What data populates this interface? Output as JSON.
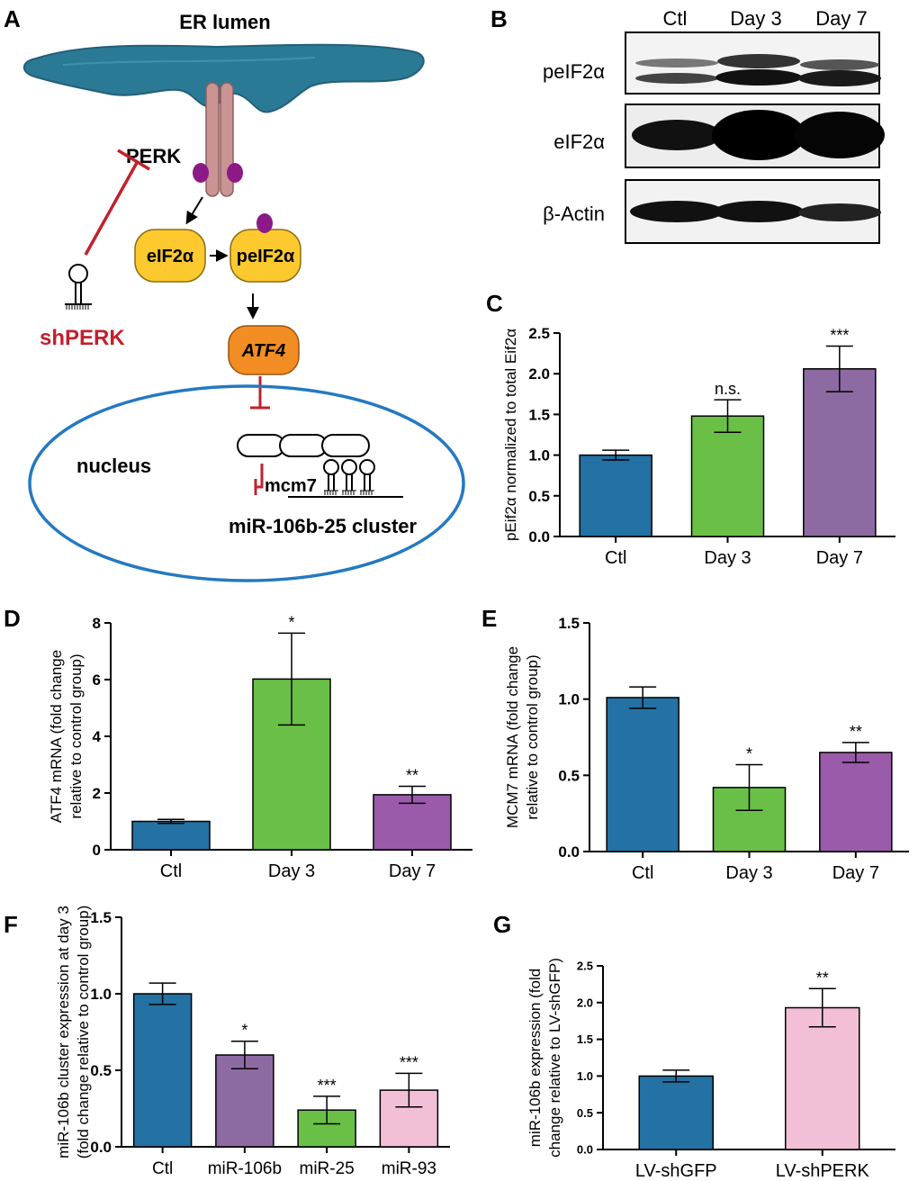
{
  "panel_labels": [
    "A",
    "B",
    "C",
    "D",
    "E",
    "F",
    "G"
  ],
  "diagram": {
    "er_lumen": "ER lumen",
    "perk": "PERK",
    "eif2a": "eIF2α",
    "peif2a": "peIF2α",
    "atf4": "ATF4",
    "nucleus": "nucleus",
    "mcm7": "mcm7",
    "cluster": "miR-106b-25  cluster",
    "shperk": "shPERK"
  },
  "blot": {
    "lanes": [
      "Ctl",
      "Day 3",
      "Day 7"
    ],
    "rows": [
      "peIF2α",
      "eIF2α",
      "β-Actin"
    ]
  },
  "chart_data": [
    {
      "panel": "C",
      "type": "bar",
      "categories": [
        "Ctl",
        "Day 3",
        "Day 7"
      ],
      "values": [
        1.0,
        1.48,
        2.06
      ],
      "errors": [
        0.06,
        0.2,
        0.28
      ],
      "sig": [
        "",
        "n.s.",
        "***"
      ],
      "colors": [
        "#2471a3",
        "#6ac046",
        "#8e6aa3"
      ],
      "ylabel": "pEif2α normalized to total Eif2α",
      "ylim": [
        0,
        2.5
      ],
      "yticks": [
        "0.0",
        "0.5",
        "1.0",
        "1.5",
        "2.0",
        "2.5"
      ]
    },
    {
      "panel": "D",
      "type": "bar",
      "categories": [
        "Ctl",
        "Day 3",
        "Day 7"
      ],
      "values": [
        1.0,
        6.02,
        1.94
      ],
      "errors": [
        0.07,
        1.62,
        0.3
      ],
      "sig": [
        "",
        "*",
        "**"
      ],
      "colors": [
        "#2471a3",
        "#6ac046",
        "#9b5bab"
      ],
      "ylabel": "ATF4 mRNA (fold change relative to control group)",
      "ylabel_lines": [
        "ATF4 mRNA (fold change",
        "relative to control group)"
      ],
      "ylim": [
        0,
        8
      ],
      "yticks": [
        "0",
        "2",
        "4",
        "6",
        "8"
      ]
    },
    {
      "panel": "E",
      "type": "bar",
      "categories": [
        "Ctl",
        "Day 3",
        "Day 7"
      ],
      "values": [
        1.01,
        0.42,
        0.65
      ],
      "errors": [
        0.07,
        0.15,
        0.065
      ],
      "sig": [
        "",
        "*",
        "**"
      ],
      "colors": [
        "#2471a3",
        "#6ac046",
        "#9b5bab"
      ],
      "ylabel": "MCM7 mRNA (fold change relative to control group)",
      "ylabel_lines": [
        "MCM7 mRNA (fold change",
        "relative to control group)"
      ],
      "ylim": [
        0,
        1.5
      ],
      "yticks": [
        "0.0",
        "0.5",
        "1.0",
        "1.5"
      ]
    },
    {
      "panel": "F",
      "type": "bar",
      "categories": [
        "Ctl",
        "miR-106b",
        "miR-25",
        "miR-93"
      ],
      "values": [
        1.0,
        0.6,
        0.24,
        0.37
      ],
      "errors": [
        0.07,
        0.09,
        0.09,
        0.11
      ],
      "sig": [
        "",
        "*",
        "***",
        "***"
      ],
      "colors": [
        "#2471a3",
        "#8e6aa3",
        "#6ac046",
        "#f2bfd7"
      ],
      "ylabel": "miR-106b cluster expression at day 3 (fold change relative to control group)",
      "ylabel_lines": [
        "miR-106b cluster expression at day 3",
        "(fold change relative to control group)"
      ],
      "ylim": [
        0,
        1.5
      ],
      "yticks": [
        "0.0",
        "0.5",
        "1.0",
        "1.5"
      ]
    },
    {
      "panel": "G",
      "type": "bar",
      "categories": [
        "LV-shGFP",
        "LV-shPERK"
      ],
      "values": [
        1.0,
        1.93
      ],
      "errors": [
        0.08,
        0.26
      ],
      "sig": [
        "",
        "**"
      ],
      "colors": [
        "#2471a3",
        "#f2bfd7"
      ],
      "ylabel": "miR-106b expression (fold change relative to LV-shGFP)",
      "ylabel_lines": [
        "miR-106b expression (fold",
        "change relative to LV-shGFP)"
      ],
      "ylim": [
        0,
        2.5
      ],
      "yticks": [
        "0.0",
        "0.5",
        "1.0",
        "1.5",
        "2.0",
        "2.5"
      ]
    }
  ]
}
